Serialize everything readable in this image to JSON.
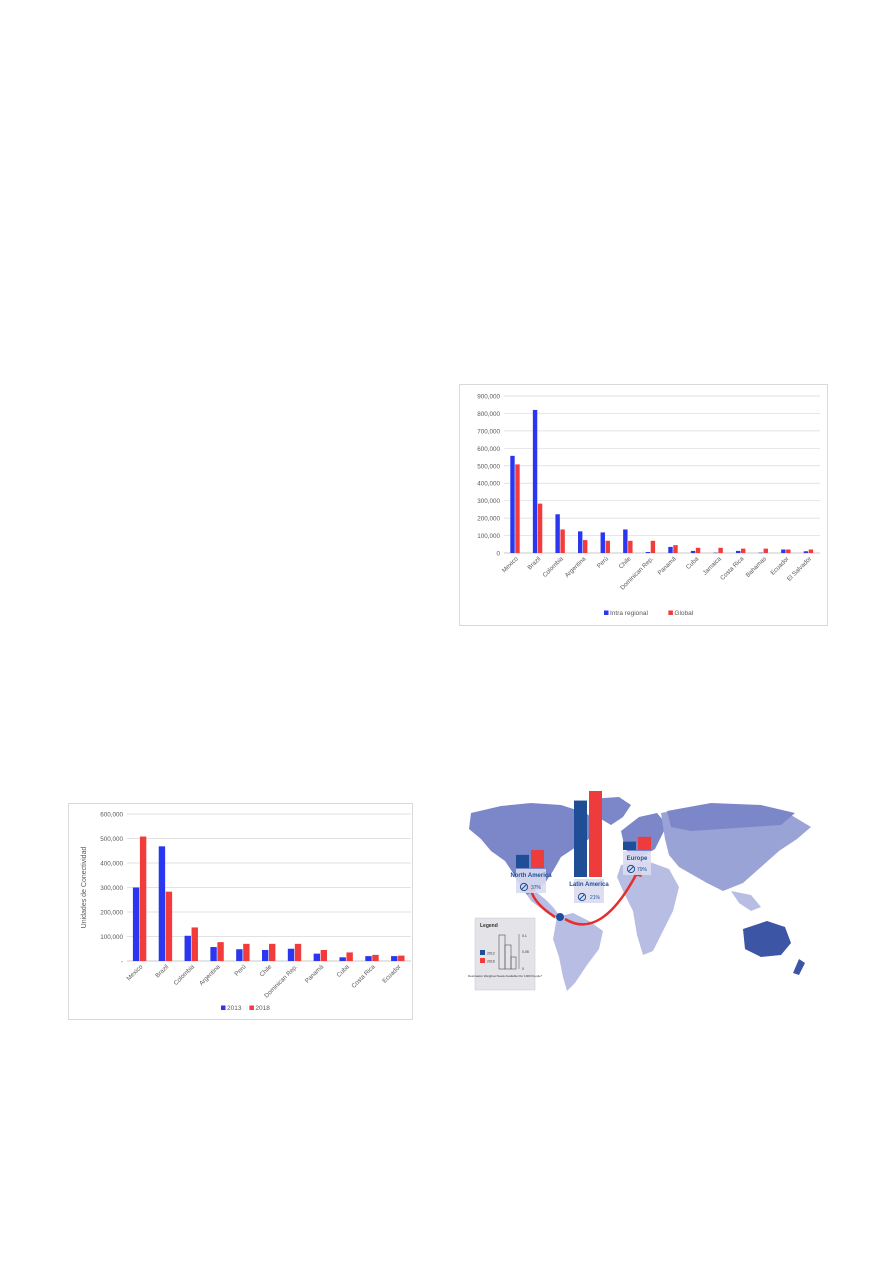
{
  "chart_data": [
    {
      "type": "bar",
      "categories": [
        "Mexico",
        "Brazil",
        "Colombia",
        "Argentina",
        "Perú",
        "Chile",
        "Dominican Rep.",
        "Panamá",
        "Cuba",
        "Jamaica",
        "Costa Rica",
        "Bahamas",
        "Ecuador",
        "El Salvador"
      ],
      "series": [
        {
          "name": "Intra regional",
          "color": "#2a36f0",
          "values": [
            557000,
            820000,
            222000,
            124000,
            118000,
            135000,
            6000,
            35000,
            12000,
            2000,
            12000,
            2000,
            20000,
            10000
          ]
        },
        {
          "name": "Global",
          "color": "#f23b3b",
          "values": [
            508000,
            283000,
            135000,
            74000,
            70000,
            70000,
            70000,
            45000,
            30000,
            30000,
            25000,
            25000,
            20000,
            20000
          ]
        }
      ],
      "yticks": [
        "900,000",
        "800,000",
        "700,000",
        "600,000",
        "500,000",
        "400,000",
        "300,000",
        "200,000",
        "100,000",
        "0"
      ],
      "ylim": [
        0,
        900000
      ],
      "legend": "bottom",
      "grid": true
    },
    {
      "type": "bar",
      "categories": [
        "Mexico",
        "Brazil",
        "Colombia",
        "Argentina",
        "Perú",
        "Chile",
        "Dominican Rep.",
        "Panamá",
        "Cuba",
        "Costa Rica",
        "Ecuador"
      ],
      "series": [
        {
          "name": "2013",
          "color": "#2a36f0",
          "values": [
            300000,
            468000,
            103000,
            57000,
            48000,
            45000,
            50000,
            30000,
            15000,
            20000,
            20000
          ]
        },
        {
          "name": "2018",
          "color": "#f23b3b",
          "values": [
            508000,
            283000,
            137000,
            77000,
            70000,
            70000,
            70000,
            45000,
            35000,
            25000,
            22000
          ]
        }
      ],
      "ylabel": "Unidades de Conectividad",
      "yticks": [
        "600,000",
        "500,000",
        "400,000",
        "300,000",
        "200,000",
        "100,000",
        "-"
      ],
      "ylim": [
        0,
        600000
      ],
      "legend": "bottom",
      "grid": true
    }
  ],
  "map": {
    "regions": [
      {
        "name": "North America",
        "percent": "37%",
        "values": [
          0.55,
          0.75
        ]
      },
      {
        "name": "Latin America",
        "percent": "21%",
        "values": [
          3.2,
          3.6
        ]
      },
      {
        "name": "Europe",
        "percent": "79%",
        "values": [
          0.35,
          0.55
        ]
      }
    ],
    "legend": {
      "title": "Legend",
      "series_years": [
        "2012",
        "2016"
      ],
      "scale": [
        "0.1",
        "0.05",
        "0"
      ],
      "caption": "Destination Weighted Seats Available Per 1000 People*"
    },
    "colors": {
      "ocean": "#ffffff",
      "land_light": "#b7bde3",
      "land_mid": "#7c87c9",
      "land_dark": "#3c55a5",
      "bar_blue": "#1f4e96",
      "bar_red": "#ee3b3b",
      "arrow": "#e52e2e"
    }
  }
}
